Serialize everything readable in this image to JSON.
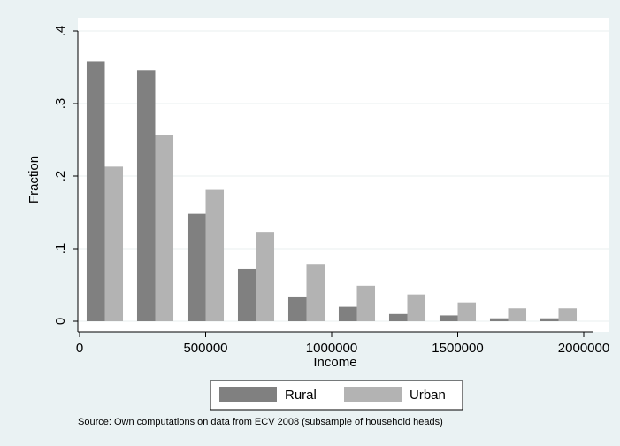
{
  "chart_data": {
    "type": "bar",
    "xlabel": "Income",
    "ylabel": "Fraction",
    "bin_centers": [
      100000,
      300000,
      500000,
      700000,
      900000,
      1100000,
      1300000,
      1500000,
      1700000,
      1900000
    ],
    "series": [
      {
        "name": "Rural",
        "color": "#808080",
        "values": [
          0.358,
          0.346,
          0.148,
          0.072,
          0.033,
          0.02,
          0.01,
          0.008,
          0.004,
          0.004
        ]
      },
      {
        "name": "Urban",
        "color": "#b3b3b3",
        "values": [
          0.213,
          0.257,
          0.181,
          0.123,
          0.079,
          0.049,
          0.037,
          0.026,
          0.018,
          0.018
        ]
      }
    ],
    "xlim": [
      0,
      2000000
    ],
    "ylim": [
      0,
      0.4
    ],
    "x_ticks": [
      0,
      500000,
      1000000,
      1500000,
      2000000
    ],
    "x_tick_labels": [
      "0",
      "500000",
      "1000000",
      "1500000",
      "2000000"
    ],
    "y_ticks": [
      0,
      0.1,
      0.2,
      0.3,
      0.4
    ],
    "y_tick_labels": [
      "0",
      ".1",
      ".2",
      ".3",
      ".4"
    ],
    "grid": true,
    "legend_position": "bottom",
    "note": "Source:  Own computations on data from ECV 2008 (subsample of household heads)"
  },
  "colors": {
    "background": "#eaf2f3",
    "plot_background": "#ffffff",
    "grid": "#e8efef"
  }
}
